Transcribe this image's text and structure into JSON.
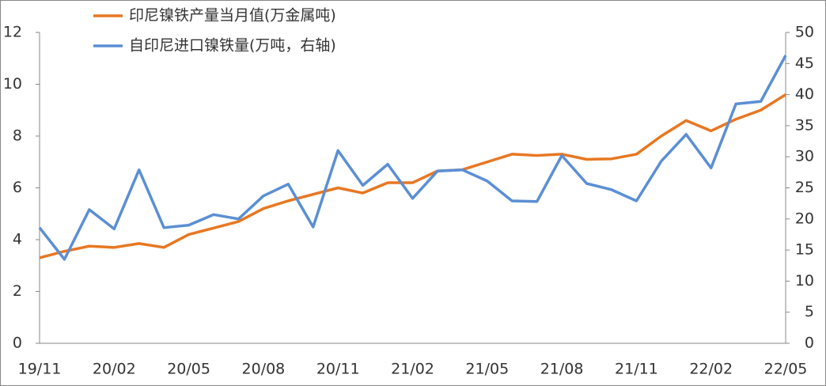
{
  "chart_data": {
    "type": "line",
    "categories": [
      "19/11",
      null,
      null,
      "20/02",
      null,
      null,
      "20/05",
      null,
      null,
      "20/08",
      null,
      null,
      "20/11",
      null,
      null,
      "21/02",
      null,
      null,
      "21/05",
      null,
      null,
      "21/08",
      null,
      null,
      "21/11",
      null,
      null,
      "22/02",
      null,
      null,
      "22/05"
    ],
    "series": [
      {
        "name": "印尼镍铁产量当月值(万金属吨)",
        "color": "#e87722",
        "values": [
          3.3,
          3.55,
          3.75,
          3.7,
          3.85,
          3.7,
          4.2,
          4.45,
          4.7,
          5.2,
          5.5,
          5.75,
          6.0,
          5.8,
          6.2,
          6.2,
          6.65,
          6.7,
          7.0,
          7.3,
          7.25,
          7.3,
          7.1,
          7.12,
          7.3,
          8.0,
          8.6,
          8.2,
          8.65,
          9.0,
          9.6
        ]
      },
      {
        "name": "自印尼进口镍铁量(万吨，右轴)",
        "color": "#5b8fd4",
        "axis": "y2",
        "values": [
          18.6,
          13.5,
          21.5,
          18.4,
          27.9,
          18.6,
          19.0,
          20.7,
          20.0,
          23.7,
          25.6,
          18.7,
          31.0,
          25.4,
          28.8,
          23.3,
          27.7,
          27.9,
          26.1,
          22.9,
          22.8,
          30.2,
          25.7,
          24.7,
          22.9,
          29.3,
          33.6,
          28.2,
          38.5,
          38.9,
          46.3
        ]
      }
    ],
    "ylim": [
      0,
      12
    ],
    "yticks": [
      0,
      2,
      4,
      6,
      8,
      10,
      12
    ],
    "y2lim": [
      0,
      50
    ],
    "y2ticks": [
      0,
      5,
      10,
      15,
      20,
      25,
      30,
      35,
      40,
      45,
      50
    ],
    "grid": false,
    "legend": "top"
  }
}
